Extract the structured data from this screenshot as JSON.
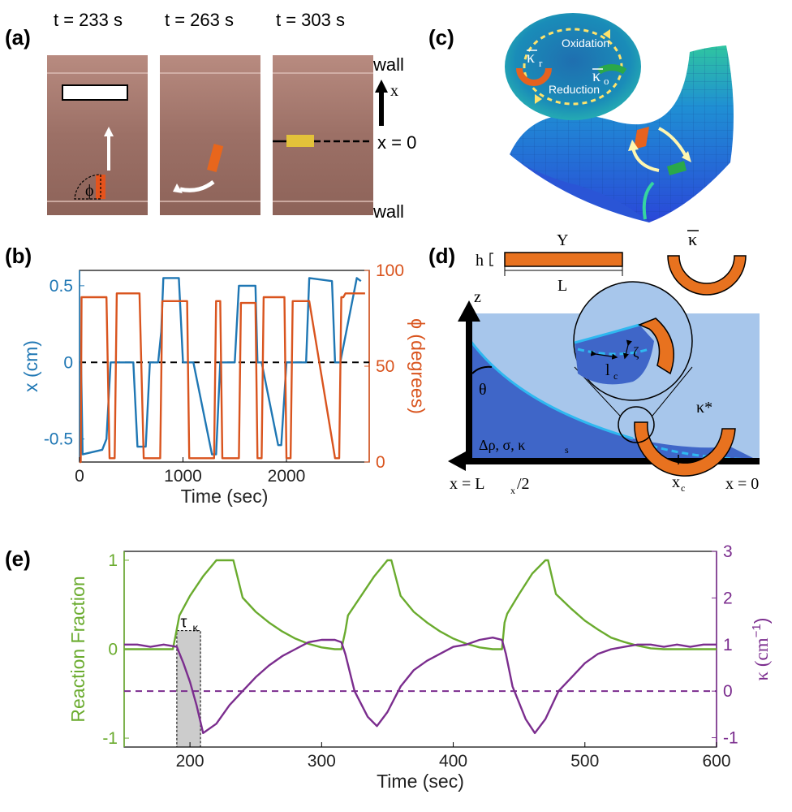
{
  "panels": {
    "a": {
      "label": "(a)",
      "times": [
        "t = 233 s",
        "t = 263 s",
        "t = 303 s"
      ],
      "wall_top": "wall",
      "wall_bottom": "wall",
      "axis": "x",
      "zero_label": "x = 0",
      "phi": "ϕ"
    },
    "b": {
      "label": "(b)"
    },
    "c": {
      "label": "(c)",
      "oxidation": "Oxidation",
      "reduction": "Reduction",
      "kr_base": "κ",
      "kr_sub": "r",
      "ko_base": "κ",
      "ko_sub": "o"
    },
    "d": {
      "label": "(d)",
      "Y": "Y",
      "L": "L",
      "h": "h",
      "kappa_bar": "κ",
      "z": "z",
      "theta": "θ",
      "zeta": "ζ",
      "lc_base": "l",
      "lc_sub": "c",
      "kappa_star": "κ*",
      "params": "Δρ, σ, κ",
      "params_sub": "s",
      "x_left": "x = L",
      "x_left_sub": "x",
      "x_left_tail": "/2",
      "xc_base": "x",
      "xc_sub": "c",
      "x_right": "x = 0"
    },
    "e": {
      "label": "(e)",
      "tau_base": "τ",
      "tau_sub": "κ"
    }
  },
  "chart_data": [
    {
      "id": "b",
      "type": "line",
      "xlabel": "Time (sec)",
      "ylabel_left": "x (cm)",
      "ylabel_right": "ϕ (degrees)",
      "xlim": [
        0,
        2800
      ],
      "ylim_left": [
        -0.65,
        0.6
      ],
      "ylim_right": [
        0,
        100
      ],
      "xticks": [
        0,
        1000,
        2000
      ],
      "xtick_labels": [
        "0",
        "1000",
        "2000"
      ],
      "yticks_left": [
        -0.5,
        0,
        0.5
      ],
      "ytick_labels_left": [
        "-0.5",
        "0",
        "0.5"
      ],
      "yticks_right": [
        0,
        50,
        100
      ],
      "ytick_labels_right": [
        "0",
        "50",
        "100"
      ],
      "reference_line": {
        "axis": "left",
        "y": 0,
        "style": "dashed",
        "color": "#000000"
      },
      "series": [
        {
          "name": "x",
          "axis": "left",
          "color": "#1f77b4",
          "x": [
            0,
            15,
            30,
            220,
            260,
            300,
            340,
            520,
            560,
            640,
            680,
            760,
            790,
            810,
            960,
            1000,
            1060,
            1100,
            1280,
            1320,
            1360,
            1400,
            1500,
            1540,
            1700,
            1720,
            1760,
            1920,
            1950,
            2000,
            2160,
            2190,
            2220,
            2440,
            2470,
            2520,
            2680,
            2720
          ],
          "values": [
            0.0,
            0.0,
            -0.6,
            -0.57,
            -0.5,
            0.0,
            0.0,
            0.0,
            -0.55,
            -0.55,
            0.0,
            0.0,
            0.2,
            0.55,
            0.55,
            0.0,
            0.0,
            0.0,
            -0.6,
            -0.6,
            0.0,
            0.0,
            0.0,
            0.5,
            0.5,
            0.0,
            0.0,
            -0.54,
            -0.54,
            0.0,
            0.0,
            0.0,
            0.55,
            0.53,
            0.0,
            0.0,
            0.55,
            0.53
          ]
        },
        {
          "name": "phi",
          "axis": "right",
          "color": "#d9541e",
          "x": [
            0,
            12,
            20,
            240,
            260,
            290,
            320,
            340,
            360,
            530,
            560,
            580,
            620,
            640,
            660,
            760,
            780,
            800,
            820,
            1000,
            1020,
            1040,
            1060,
            1080,
            1100,
            1300,
            1320,
            1340,
            1360,
            1380,
            1400,
            1540,
            1560,
            1580,
            1700,
            1720,
            1740,
            1760,
            1780,
            1800,
            1960,
            1980,
            2000,
            2020,
            2040,
            2060,
            2180,
            2200,
            2220,
            2470,
            2490,
            2510,
            2530,
            2550,
            2570,
            2760
          ],
          "values": [
            0,
            0,
            86,
            86,
            86,
            2,
            2,
            2,
            88,
            88,
            88,
            88,
            2,
            2,
            2,
            2,
            2,
            84,
            84,
            84,
            84,
            84,
            2,
            2,
            2,
            2,
            84,
            84,
            84,
            2,
            2,
            2,
            83,
            83,
            83,
            2,
            2,
            2,
            86,
            86,
            86,
            86,
            2,
            2,
            2,
            84,
            84,
            84,
            84,
            2,
            2,
            2,
            86,
            86,
            88,
            88
          ]
        }
      ]
    },
    {
      "id": "e",
      "type": "line",
      "xlabel": "Time (sec)",
      "ylabel_left": "Reaction Fraction",
      "ylabel_right_base": "κ",
      "ylabel_right_unit": "(cm",
      "ylabel_right_exp": "−1",
      "ylabel_right_close": ")",
      "xlim": [
        150,
        600
      ],
      "ylim_left": [
        -1.1,
        1.1
      ],
      "ylim_right": [
        -1.2,
        3.0
      ],
      "xticks": [
        200,
        300,
        400,
        500,
        600
      ],
      "xtick_labels": [
        "200",
        "300",
        "400",
        "500",
        "600"
      ],
      "yticks_left": [
        -1,
        0,
        1
      ],
      "ytick_labels_left": [
        "-1",
        "0",
        "1"
      ],
      "yticks_right": [
        -1,
        0,
        1,
        2,
        3
      ],
      "ytick_labels_right": [
        "-1",
        "0",
        "1",
        "2",
        "3"
      ],
      "reference_line": {
        "axis": "right",
        "y": 0,
        "style": "dashed",
        "color": "#7b2d8e"
      },
      "shaded_region": {
        "x0": 190,
        "x1": 208,
        "color": "#cccccc"
      },
      "series": [
        {
          "name": "Reaction Fraction",
          "axis": "left",
          "color": "#6aab2e",
          "x": [
            150,
            187,
            189,
            192,
            200,
            210,
            220,
            230,
            233,
            240,
            250,
            260,
            270,
            280,
            290,
            300,
            310,
            315,
            318,
            320,
            330,
            340,
            350,
            353,
            360,
            370,
            380,
            390,
            400,
            410,
            420,
            430,
            437,
            439,
            441,
            450,
            460,
            470,
            472,
            478,
            490,
            500,
            510,
            520,
            530,
            540,
            550,
            560,
            570,
            580,
            590,
            600
          ],
          "values": [
            0,
            0,
            0.15,
            0.38,
            0.6,
            0.82,
            1.0,
            1.0,
            1.0,
            0.58,
            0.42,
            0.3,
            0.2,
            0.12,
            0.06,
            0.02,
            0.0,
            0.0,
            0.2,
            0.38,
            0.6,
            0.82,
            1.0,
            1.0,
            0.6,
            0.42,
            0.3,
            0.2,
            0.12,
            0.06,
            0.02,
            0.0,
            0.0,
            0.3,
            0.4,
            0.62,
            0.85,
            1.0,
            1.0,
            0.62,
            0.45,
            0.32,
            0.22,
            0.13,
            0.08,
            0.04,
            0.01,
            0.0,
            0.0,
            0.0,
            0.0,
            0.0
          ]
        },
        {
          "name": "κ",
          "axis": "right",
          "color": "#7b2d8e",
          "x": [
            150,
            160,
            170,
            180,
            190,
            195,
            200,
            205,
            210,
            220,
            230,
            240,
            250,
            260,
            270,
            280,
            290,
            300,
            310,
            315,
            318,
            325,
            335,
            342,
            350,
            360,
            370,
            380,
            390,
            400,
            410,
            420,
            430,
            437,
            440,
            445,
            455,
            462,
            470,
            480,
            490,
            500,
            510,
            520,
            530,
            540,
            550,
            560,
            570,
            580,
            590,
            600
          ],
          "values": [
            1.0,
            1.0,
            0.95,
            1.0,
            0.95,
            0.6,
            0.2,
            -0.3,
            -0.9,
            -0.7,
            -0.3,
            0.0,
            0.3,
            0.55,
            0.75,
            0.9,
            1.05,
            1.1,
            1.1,
            1.05,
            0.8,
            0.0,
            -0.55,
            -0.75,
            -0.45,
            0.1,
            0.45,
            0.65,
            0.8,
            0.95,
            1.0,
            1.1,
            1.15,
            1.1,
            0.8,
            0.1,
            -0.6,
            -0.9,
            -0.6,
            0.0,
            0.3,
            0.6,
            0.8,
            0.9,
            0.95,
            1.0,
            1.0,
            0.95,
            1.0,
            0.95,
            1.0,
            1.0
          ]
        }
      ]
    }
  ]
}
